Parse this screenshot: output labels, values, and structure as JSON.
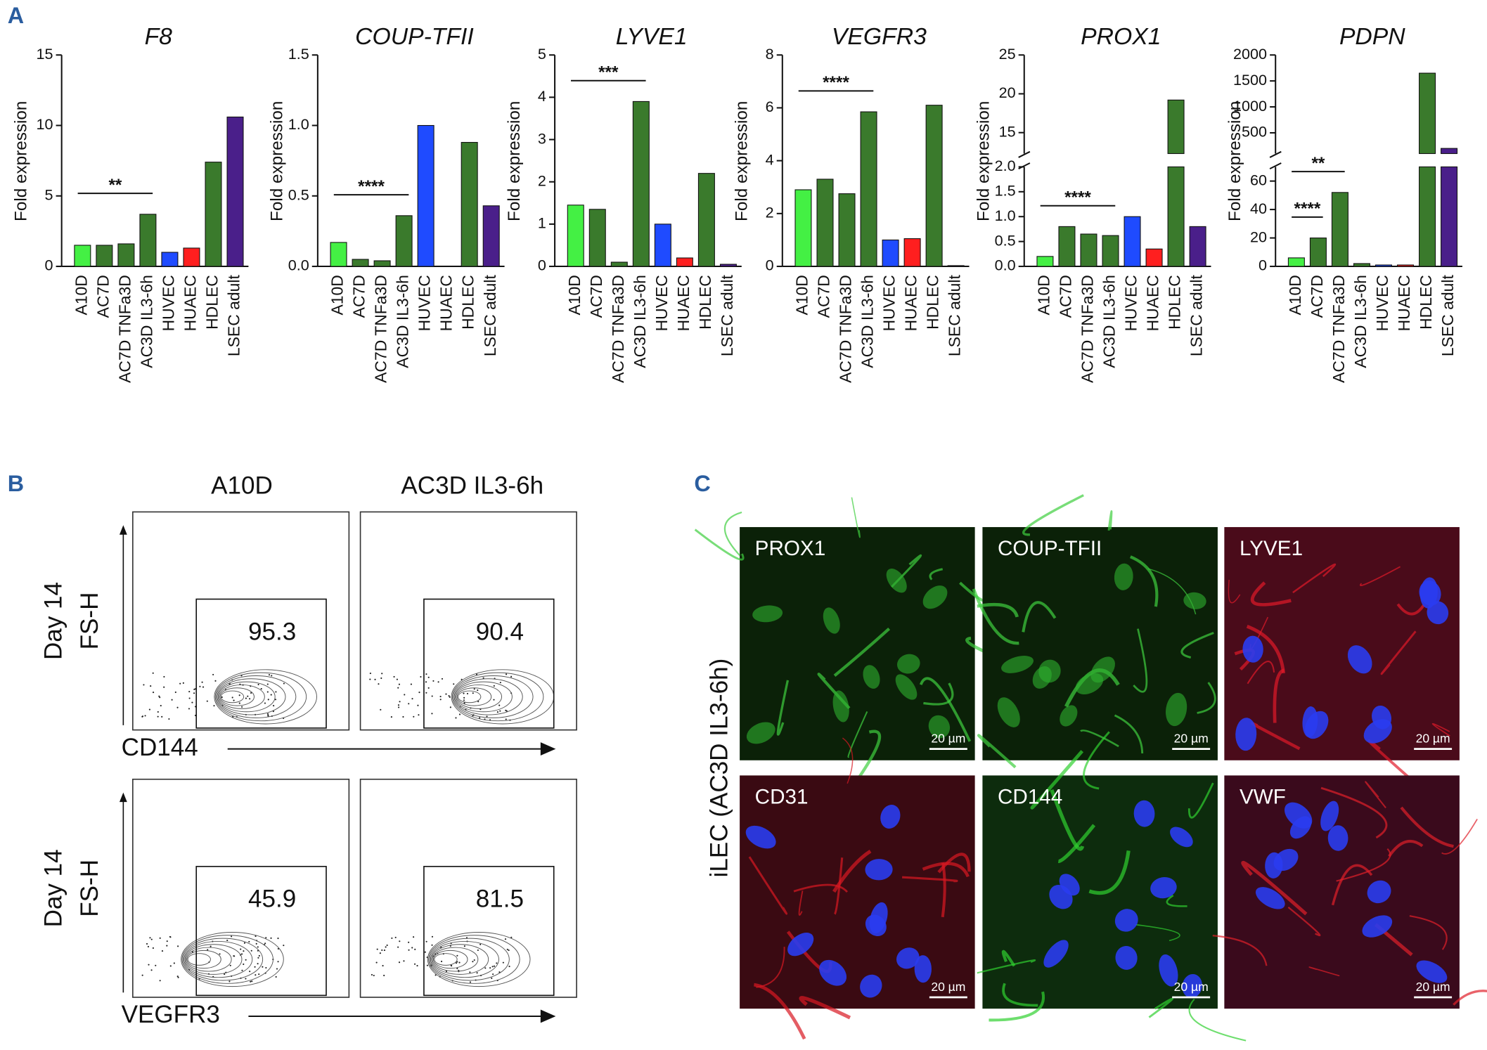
{
  "chart_data": [
    {
      "type": "bar",
      "title": "F8",
      "ylabel": "Fold expression",
      "categories": [
        "A10D",
        "AC7D",
        "AC7D TNFa3D",
        "AC3D IL3-6h",
        "HUVEC",
        "HUAEC",
        "HDLEC",
        "LSEC adult"
      ],
      "values": [
        1.5,
        1.5,
        1.6,
        3.7,
        1.0,
        1.3,
        7.4,
        10.6
      ],
      "colors": [
        "#44f044",
        "#3a7a2c",
        "#3a7a2c",
        "#3a7a2c",
        "#1f4bff",
        "#ff1f1f",
        "#3a7a2c",
        "#4a1f8a"
      ],
      "ylim": [
        0,
        15
      ],
      "yticks": [
        0,
        5,
        10,
        15
      ],
      "significance": [
        {
          "label": "**",
          "pair": [
            "A10D",
            "AC3D IL3-6h"
          ]
        }
      ]
    },
    {
      "type": "bar",
      "title": "COUP-TFII",
      "ylabel": "Fold expression",
      "categories": [
        "A10D",
        "AC7D",
        "AC7D TNFa3D",
        "AC3D IL3-6h",
        "HUVEC",
        "HUAEC",
        "HDLEC",
        "LSEC adult"
      ],
      "values": [
        0.17,
        0.05,
        0.04,
        0.36,
        1.0,
        0.0,
        0.88,
        0.43
      ],
      "colors": [
        "#44f044",
        "#3a7a2c",
        "#3a7a2c",
        "#3a7a2c",
        "#1f4bff",
        "#ff1f1f",
        "#3a7a2c",
        "#4a1f8a"
      ],
      "ylim": [
        0,
        1.5
      ],
      "yticks": [
        {
          "value": 0,
          "label": "0.0"
        },
        {
          "value": 0.5,
          "label": "0.5"
        },
        {
          "value": 1,
          "label": "1.0"
        },
        {
          "value": 1.5,
          "label": "1.5"
        }
      ],
      "significance": [
        {
          "label": "****",
          "pair": [
            "A10D",
            "AC3D IL3-6h"
          ]
        }
      ]
    },
    {
      "type": "bar",
      "title": "LYVE1",
      "ylabel": "Fold expression",
      "categories": [
        "A10D",
        "AC7D",
        "AC7D TNFa3D",
        "AC3D IL3-6h",
        "HUVEC",
        "HUAEC",
        "HDLEC",
        "LSEC adult"
      ],
      "values": [
        1.45,
        1.35,
        0.1,
        3.9,
        1.0,
        0.2,
        2.2,
        0.05
      ],
      "colors": [
        "#44f044",
        "#3a7a2c",
        "#3a7a2c",
        "#3a7a2c",
        "#1f4bff",
        "#ff1f1f",
        "#3a7a2c",
        "#4a1f8a"
      ],
      "ylim": [
        0,
        5
      ],
      "yticks": [
        0,
        1,
        2,
        3,
        4,
        5
      ],
      "significance": [
        {
          "label": "***",
          "pair": [
            "A10D",
            "AC3D IL3-6h"
          ]
        }
      ]
    },
    {
      "type": "bar",
      "title": "VEGFR3",
      "ylabel": "Fold expression",
      "categories": [
        "A10D",
        "AC7D",
        "AC7D TNFa3D",
        "AC3D IL3-6h",
        "HUVEC",
        "HUAEC",
        "HDLEC",
        "LSEC adult"
      ],
      "values": [
        2.9,
        3.3,
        2.75,
        5.85,
        1.0,
        1.05,
        6.1,
        0.03
      ],
      "colors": [
        "#44f044",
        "#3a7a2c",
        "#3a7a2c",
        "#3a7a2c",
        "#1f4bff",
        "#ff1f1f",
        "#3a7a2c",
        "#4a1f8a"
      ],
      "ylim": [
        0,
        8
      ],
      "yticks": [
        0,
        2,
        4,
        6,
        8
      ],
      "significance": [
        {
          "label": "****",
          "pair": [
            "A10D",
            "AC3D IL3-6h"
          ]
        }
      ]
    },
    {
      "type": "bar",
      "title": "PROX1",
      "ylabel": "Fold expression",
      "categories": [
        "A10D",
        "AC7D",
        "AC7D TNFa3D",
        "AC3D IL3-6h",
        "HUVEC",
        "HUAEC",
        "HDLEC",
        "LSEC adult"
      ],
      "values": [
        0.2,
        0.8,
        0.65,
        0.62,
        1.0,
        0.35,
        19.2,
        0.8
      ],
      "colors": [
        "#44f044",
        "#3a7a2c",
        "#3a7a2c",
        "#3a7a2c",
        "#1f4bff",
        "#ff1f1f",
        "#3a7a2c",
        "#4a1f8a"
      ],
      "segments": [
        {
          "ylim": [
            0,
            2
          ],
          "yticks": [
            {
              "value": 0,
              "label": "0.0"
            },
            {
              "value": 0.5,
              "label": "0.5"
            },
            {
              "value": 1,
              "label": "1.0"
            },
            {
              "value": 1.5,
              "label": "1.5"
            },
            {
              "value": 2,
              "label": "2.0"
            }
          ]
        },
        {
          "ylim": [
            12.3,
            25
          ],
          "yticks": [
            15,
            20,
            25
          ]
        }
      ],
      "significance": [
        {
          "label": "****",
          "pair": [
            "A10D",
            "AC3D IL3-6h"
          ]
        }
      ]
    },
    {
      "type": "bar",
      "title": "PDPN",
      "ylabel": "Fold expression",
      "categories": [
        "A10D",
        "AC7D",
        "AC7D TNFa3D",
        "AC3D IL3-6h",
        "HUVEC",
        "HUAEC",
        "HDLEC",
        "LSEC adult"
      ],
      "values": [
        6,
        20,
        52,
        2,
        1,
        1,
        1650,
        200
      ],
      "colors": [
        "#44f044",
        "#3a7a2c",
        "#3a7a2c",
        "#3a7a2c",
        "#1f4bff",
        "#ff1f1f",
        "#3a7a2c",
        "#4a1f8a"
      ],
      "segments": [
        {
          "ylim": [
            0,
            70
          ],
          "yticks": [
            0,
            20,
            40,
            60
          ]
        },
        {
          "ylim": [
            100,
            2000
          ],
          "yticks": [
            500,
            1000,
            1500,
            2000
          ]
        }
      ],
      "significance": [
        {
          "label": "****",
          "pair": [
            "A10D",
            "AC7D"
          ]
        },
        {
          "label": "**",
          "pair": [
            "A10D",
            "AC7D TNFa3D"
          ]
        }
      ]
    }
  ],
  "panel_labels": [
    "A",
    "B",
    "C"
  ],
  "flow": {
    "columns": [
      "A10D",
      "AC3D IL3-6h"
    ],
    "rows": [
      {
        "day": "Day 14",
        "axis_y": "FS-H",
        "axis_x": "CD144",
        "gates": [
          "95.3",
          "90.4"
        ]
      },
      {
        "day": "Day 14",
        "axis_y": "FS-H",
        "axis_x": "VEGFR3",
        "gates": [
          "45.9",
          "81.5"
        ]
      }
    ]
  },
  "microscopy": {
    "side_label": "iLEC (AC3D IL3-6h)",
    "panels": [
      {
        "label": "PROX1",
        "scale": "20 µm"
      },
      {
        "label": "COUP-TFII",
        "scale": "20 µm"
      },
      {
        "label": "LYVE1",
        "scale": "20 µm"
      },
      {
        "label": "CD31",
        "scale": "20 µm"
      },
      {
        "label": "CD144",
        "scale": "20 µm"
      },
      {
        "label": "VWF",
        "scale": "20 µm"
      }
    ]
  }
}
